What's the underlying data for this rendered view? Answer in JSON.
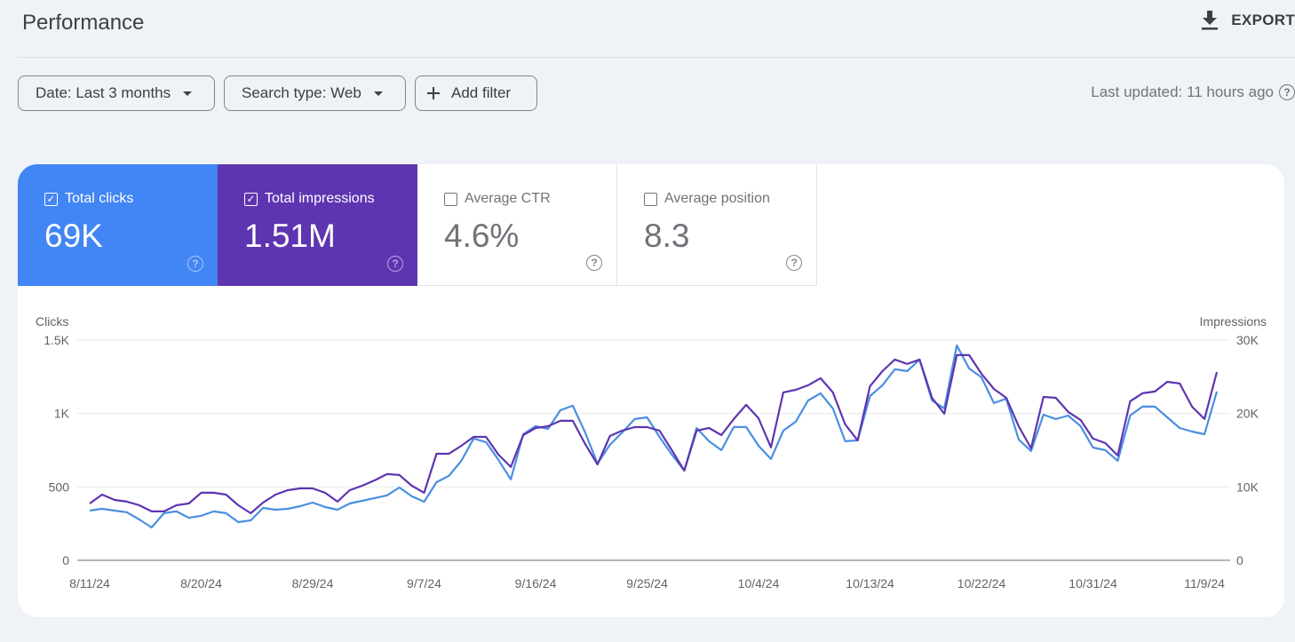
{
  "header": {
    "title": "Performance",
    "export_label": "EXPORT",
    "export_icon": "download-icon"
  },
  "filters": [
    {
      "label": "Date: Last 3 months"
    },
    {
      "label": "Search type: Web"
    },
    {
      "label": "Add filter",
      "icon": "plus-icon"
    }
  ],
  "last_updated": "Last updated: 11 hours ago",
  "metrics": [
    {
      "label": "Total clicks",
      "value": "69K",
      "checked": true,
      "color": "#4285f4"
    },
    {
      "label": "Total impressions",
      "value": "1.51M",
      "checked": true,
      "color": "#5e35b1"
    },
    {
      "label": "Average CTR",
      "value": "4.6%",
      "checked": false
    },
    {
      "label": "Average position",
      "value": "8.3",
      "checked": false
    }
  ],
  "chart_data": {
    "type": "line",
    "left_axis_label": "Clicks",
    "right_axis_label": "Impressions",
    "left_ticks": [
      "0",
      "500",
      "1K",
      "1.5K"
    ],
    "right_ticks": [
      "0",
      "10K",
      "20K",
      "30K"
    ],
    "left_ylim": [
      0,
      1500
    ],
    "right_ylim": [
      0,
      30000
    ],
    "grid": true,
    "x_tick_labels": [
      "8/11/24",
      "8/20/24",
      "8/29/24",
      "9/7/24",
      "9/16/24",
      "9/25/24",
      "10/4/24",
      "10/13/24",
      "10/22/24",
      "10/31/24",
      "11/9/24"
    ],
    "x": [
      "8/11",
      "8/12",
      "8/13",
      "8/14",
      "8/15",
      "8/16",
      "8/17",
      "8/18",
      "8/19",
      "8/20",
      "8/21",
      "8/22",
      "8/23",
      "8/24",
      "8/25",
      "8/26",
      "8/27",
      "8/28",
      "8/29",
      "8/30",
      "8/31",
      "9/1",
      "9/2",
      "9/3",
      "9/4",
      "9/5",
      "9/6",
      "9/7",
      "9/8",
      "9/9",
      "9/10",
      "9/11",
      "9/12",
      "9/13",
      "9/14",
      "9/15",
      "9/16",
      "9/17",
      "9/18",
      "9/19",
      "9/20",
      "9/21",
      "9/22",
      "9/23",
      "9/24",
      "9/25",
      "9/26",
      "9/27",
      "9/28",
      "9/29",
      "9/30",
      "10/1",
      "10/2",
      "10/3",
      "10/4",
      "10/5",
      "10/6",
      "10/7",
      "10/8",
      "10/9",
      "10/10",
      "10/11",
      "10/12",
      "10/13",
      "10/14",
      "10/15",
      "10/16",
      "10/17",
      "10/18",
      "10/19",
      "10/20",
      "10/21",
      "10/22",
      "10/23",
      "10/24",
      "10/25",
      "10/26",
      "10/27",
      "10/28",
      "10/29",
      "10/30",
      "10/31",
      "11/1",
      "11/2",
      "11/3",
      "11/4",
      "11/5",
      "11/6",
      "11/7",
      "11/8",
      "11/9",
      "11/10"
    ],
    "series": [
      {
        "name": "Clicks",
        "axis": "left",
        "color": "#4a8fe0",
        "values": [
          339,
          351,
          339,
          327,
          278,
          224,
          321,
          333,
          290,
          303,
          333,
          321,
          260,
          272,
          357,
          345,
          351,
          369,
          393,
          363,
          345,
          387,
          405,
          424,
          442,
          496,
          436,
          399,
          532,
          575,
          678,
          829,
          805,
          684,
          551,
          859,
          914,
          895,
          1022,
          1053,
          871,
          659,
          787,
          871,
          962,
          974,
          841,
          720,
          611,
          901,
          811,
          750,
          908,
          908,
          780,
          690,
          883,
          944,
          1089,
          1137,
          1035,
          811,
          817,
          1119,
          1192,
          1301,
          1289,
          1367,
          1089,
          1035,
          1464,
          1307,
          1246,
          1071,
          1101,
          823,
          744,
          992,
          962,
          986,
          914,
          768,
          750,
          678,
          986,
          1047,
          1047,
          974,
          901,
          877,
          859,
          1150
        ]
      },
      {
        "name": "Impressions",
        "axis": "right",
        "color": "#5e35b1",
        "values": [
          7740,
          8950,
          8230,
          7990,
          7500,
          6660,
          6660,
          7500,
          7740,
          9200,
          9200,
          8950,
          7500,
          6410,
          7870,
          8950,
          9560,
          9800,
          9800,
          9200,
          7990,
          9560,
          10160,
          10890,
          11740,
          11620,
          10160,
          9200,
          14520,
          14520,
          15610,
          16820,
          16820,
          14400,
          12710,
          17060,
          18030,
          18270,
          19000,
          19000,
          15850,
          13070,
          16940,
          17670,
          18150,
          18150,
          17670,
          15000,
          12220,
          17670,
          18030,
          17060,
          19240,
          21180,
          19360,
          15370,
          22870,
          23230,
          23840,
          24810,
          22870,
          18510,
          16340,
          23720,
          25770,
          27350,
          26740,
          27350,
          22140,
          19970,
          27950,
          27950,
          25410,
          23350,
          22140,
          18270,
          15250,
          22260,
          22140,
          20210,
          19120,
          16580,
          15970,
          14280,
          21660,
          22750,
          22990,
          24320,
          24080,
          20930,
          19240,
          25650
        ]
      }
    ]
  }
}
